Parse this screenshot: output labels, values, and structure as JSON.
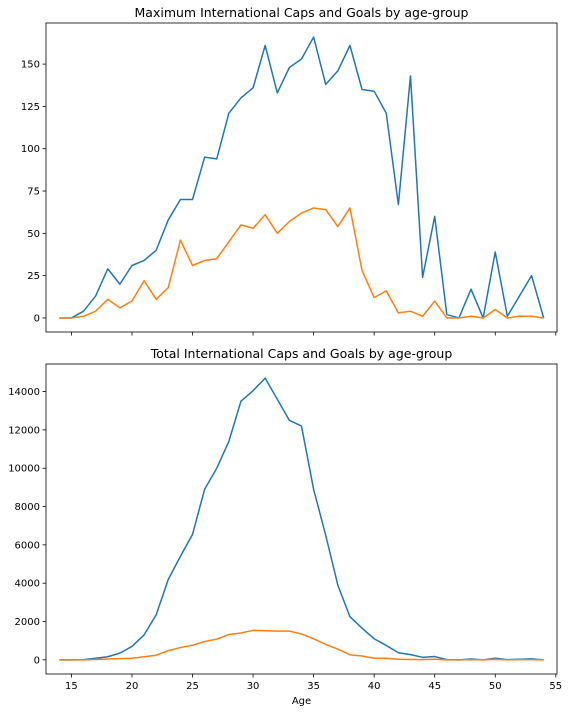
{
  "chart_data": [
    {
      "type": "line",
      "title": "Maximum International Caps and Goals by age-group",
      "xlabel": "",
      "ylabel": "",
      "xlim": [
        12.9,
        55.1
      ],
      "ylim": [
        -8.3,
        174.3
      ],
      "yticks": [
        0,
        25,
        50,
        75,
        100,
        125,
        150
      ],
      "xticks": [
        15,
        20,
        25,
        30,
        35,
        40,
        45,
        50,
        55
      ],
      "show_xtick_labels": false,
      "grid": false,
      "x": [
        14,
        15,
        16,
        17,
        18,
        19,
        20,
        21,
        22,
        23,
        24,
        25,
        26,
        27,
        28,
        29,
        30,
        31,
        32,
        33,
        34,
        35,
        36,
        37,
        38,
        39,
        40,
        41,
        42,
        43,
        44,
        45,
        46,
        47,
        48,
        49,
        50,
        51,
        52,
        53,
        54
      ],
      "series": [
        {
          "color": "#1f77b4",
          "values": [
            0,
            0,
            4,
            13,
            29,
            20,
            31,
            34,
            40,
            58,
            70,
            70,
            95,
            94,
            121,
            130,
            136,
            161,
            133,
            148,
            153,
            166,
            138,
            146,
            161,
            135,
            134,
            121,
            67,
            143,
            24,
            60,
            2,
            0,
            17,
            0,
            39,
            1,
            13,
            25,
            0
          ]
        },
        {
          "color": "#ff7f0e",
          "values": [
            0,
            0,
            1,
            4,
            11,
            6,
            10,
            22,
            11,
            18,
            46,
            31,
            34,
            35,
            45,
            55,
            53,
            61,
            50,
            57,
            62,
            65,
            64,
            54,
            65,
            28,
            12,
            16,
            3,
            4,
            1,
            10,
            0,
            0,
            1,
            0,
            5,
            0,
            1,
            1,
            0
          ]
        }
      ]
    },
    {
      "type": "line",
      "title": "Total International Caps and Goals by age-group",
      "xlabel": "Age",
      "ylabel": "",
      "xlim": [
        12.9,
        55.1
      ],
      "ylim": [
        -740,
        15440
      ],
      "yticks": [
        0,
        2000,
        4000,
        6000,
        8000,
        10000,
        12000,
        14000
      ],
      "xticks": [
        15,
        20,
        25,
        30,
        35,
        40,
        45,
        50,
        55
      ],
      "show_xtick_labels": true,
      "grid": false,
      "x": [
        14,
        15,
        16,
        17,
        18,
        19,
        20,
        21,
        22,
        23,
        24,
        25,
        26,
        27,
        28,
        29,
        30,
        31,
        32,
        33,
        34,
        35,
        36,
        37,
        38,
        39,
        40,
        41,
        42,
        43,
        44,
        45,
        46,
        47,
        48,
        49,
        50,
        51,
        52,
        53,
        54
      ],
      "series": [
        {
          "color": "#1f77b4",
          "values": [
            0,
            0,
            10,
            80,
            160,
            350,
            700,
            1300,
            2350,
            4200,
            5400,
            6550,
            8900,
            10000,
            11400,
            13500,
            14050,
            14700,
            13600,
            12500,
            12200,
            8900,
            6500,
            3900,
            2250,
            1650,
            1100,
            750,
            370,
            270,
            130,
            170,
            10,
            0,
            40,
            0,
            80,
            10,
            30,
            50,
            0
          ]
        },
        {
          "color": "#ff7f0e",
          "values": [
            0,
            0,
            0,
            20,
            40,
            60,
            80,
            160,
            240,
            480,
            640,
            760,
            960,
            1080,
            1320,
            1400,
            1540,
            1520,
            1500,
            1500,
            1350,
            1100,
            800,
            560,
            260,
            200,
            80,
            80,
            30,
            20,
            10,
            30,
            0,
            0,
            10,
            0,
            30,
            0,
            10,
            10,
            0
          ]
        }
      ]
    }
  ]
}
